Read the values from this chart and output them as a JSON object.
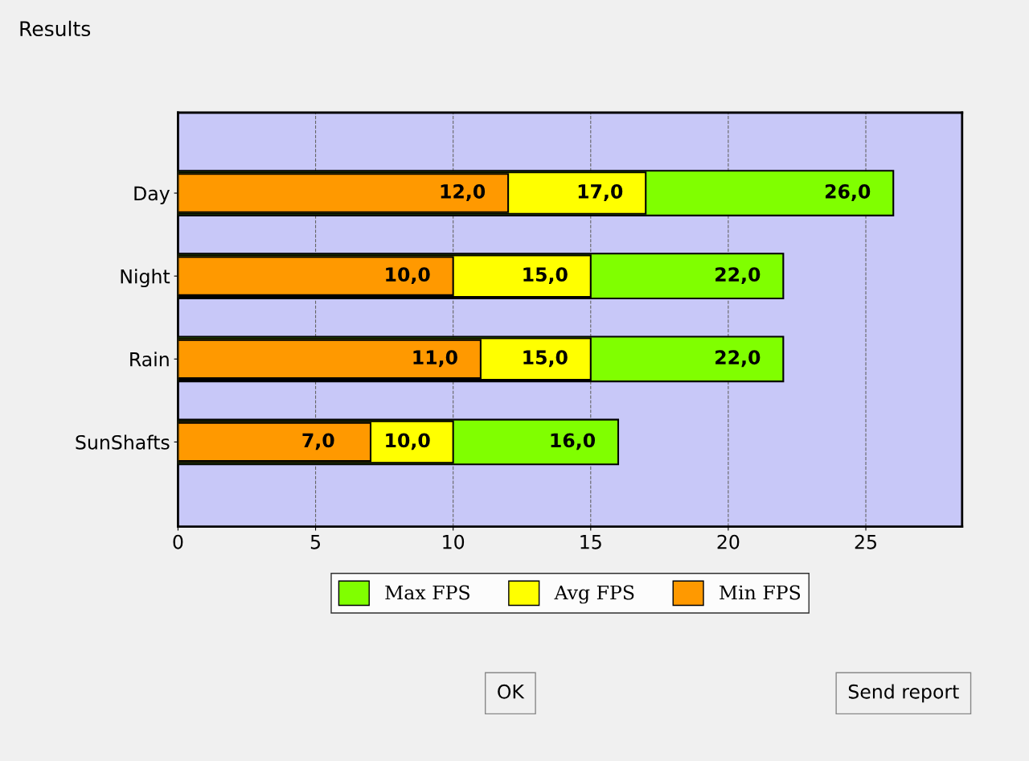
{
  "chart_data": {
    "type": "bar",
    "title": "Results",
    "orientation": "horizontal",
    "categories": [
      "Day",
      "Night",
      "Rain",
      "SunShafts"
    ],
    "series": [
      {
        "name": "Max FPS",
        "color": "#80ff00",
        "values": [
          26,
          22,
          22,
          16
        ],
        "value_labels": [
          "26,0",
          "22,0",
          "22,0",
          "16,0"
        ]
      },
      {
        "name": "Avg FPS",
        "color": "#ffff00",
        "values": [
          17,
          15,
          15,
          10
        ],
        "value_labels": [
          "17,0",
          "15,0",
          "15,0",
          "10,0"
        ]
      },
      {
        "name": "Min FPS",
        "color": "#ff9900",
        "values": [
          12,
          10,
          11,
          7
        ],
        "value_labels": [
          "12,0",
          "10,0",
          "11,0",
          "7,0"
        ]
      }
    ],
    "xlim": [
      0,
      28.5
    ],
    "xticks": [
      0,
      5,
      10,
      15,
      20,
      25
    ],
    "grid": "x",
    "legend": "bottom",
    "annotations": [
      "OK",
      "Send report"
    ]
  }
}
